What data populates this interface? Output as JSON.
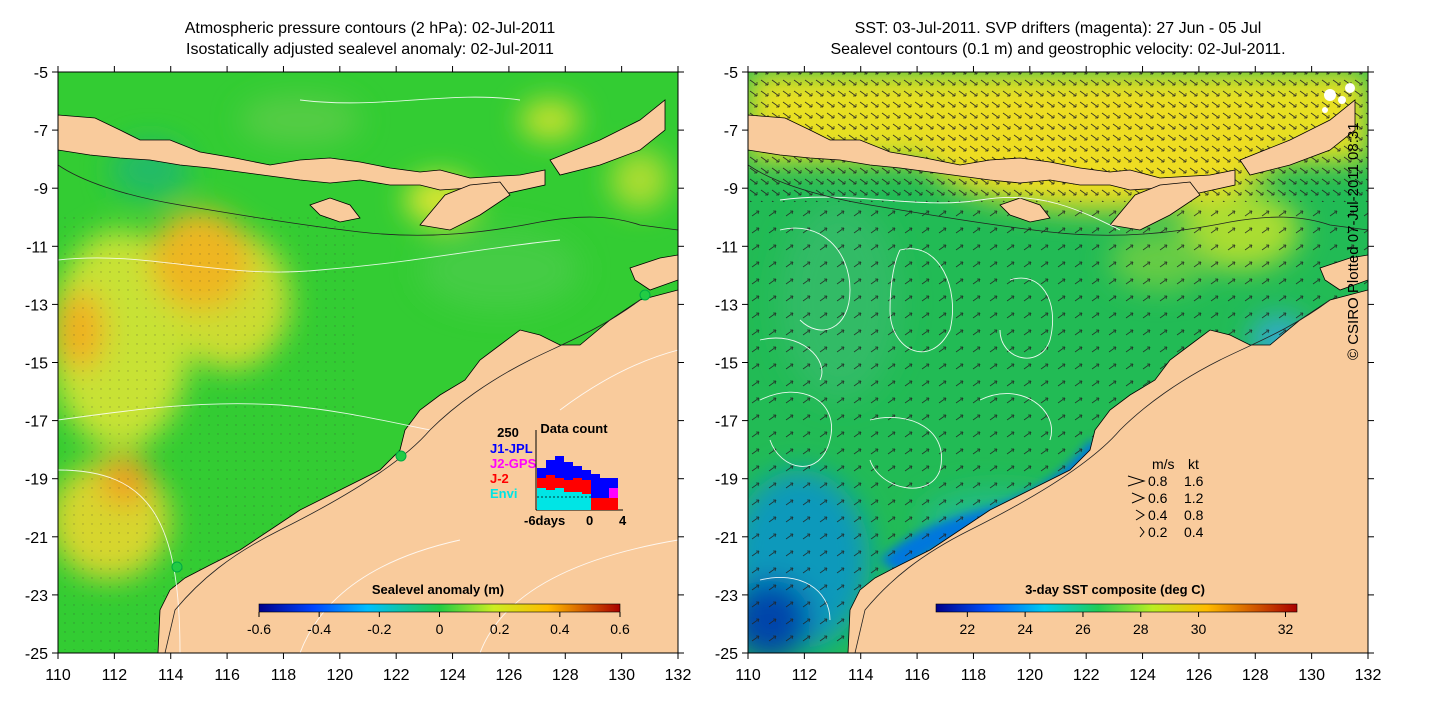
{
  "left_panel": {
    "title_line1": "Atmospheric pressure contours (2 hPa): 02-Jul-2011",
    "title_line2": "Isostatically adjusted sealevel anomaly: 02-Jul-2011",
    "colorbar_title": "Sealevel anomaly (m)",
    "colorbar_ticks": [
      "-0.6",
      "-0.4",
      "-0.2",
      "0",
      "0.2",
      "0.4",
      "0.6"
    ],
    "inset": {
      "max_label": "250",
      "title": "Data count",
      "legend": [
        {
          "label": "J1-JPL",
          "color": "#0000ff"
        },
        {
          "label": "J2-GPS",
          "color": "#ff00ff"
        },
        {
          "label": "J-2",
          "color": "#ff0000"
        },
        {
          "label": "Envi",
          "color": "#00e5e5"
        }
      ],
      "xticks": [
        "-6days",
        "0",
        "4"
      ]
    }
  },
  "right_panel": {
    "title_line1": "SST: 03-Jul-2011. SVP drifters (magenta): 27 Jun - 05 Jul",
    "title_line2": "Sealevel contours (0.1 m) and geostrophic velocity: 02-Jul-2011.",
    "colorbar_title": "3-day SST composite (deg C)",
    "colorbar_ticks": [
      "22",
      "24",
      "26",
      "28",
      "30",
      "32"
    ],
    "speed_legend": {
      "header_ms": "m/s",
      "header_kt": "kt",
      "rows": [
        {
          "ms": "0.8",
          "kt": "1.6"
        },
        {
          "ms": "0.6",
          "kt": "1.2"
        },
        {
          "ms": "0.4",
          "kt": "0.8"
        },
        {
          "ms": "0.2",
          "kt": "0.4"
        }
      ]
    }
  },
  "axes": {
    "lat_ticks": [
      "-5",
      "-7",
      "-9",
      "-11",
      "-13",
      "-15",
      "-17",
      "-19",
      "-21",
      "-23",
      "-25"
    ],
    "lon_ticks": [
      "110",
      "112",
      "114",
      "116",
      "118",
      "120",
      "122",
      "124",
      "126",
      "128",
      "130",
      "132"
    ]
  },
  "credit": "© CSIRO Plotted 07-Jul-2011 08:31",
  "colors": {
    "land": "#f9cb9c",
    "ocean_base_left": "#33cc33",
    "ocean_base_right": "#22bb55"
  }
}
